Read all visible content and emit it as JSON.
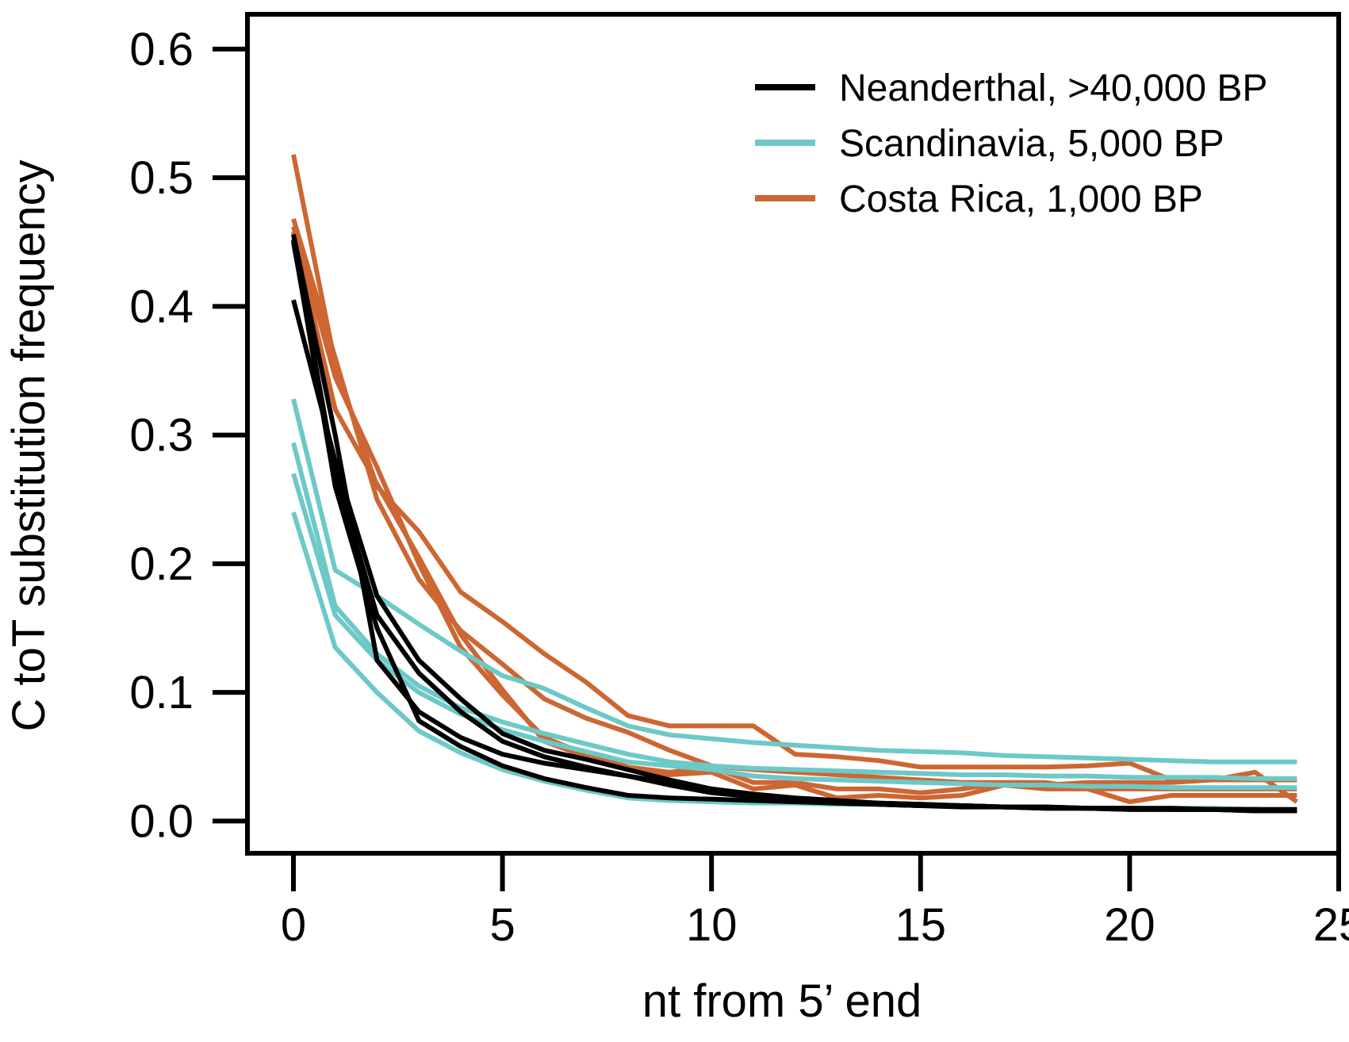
{
  "chart_data": {
    "type": "line",
    "title": "",
    "xlabel": "nt from 5’ end",
    "ylabel": "C toT substitution frequency",
    "xlim": [
      -1.1,
      25
    ],
    "ylim": [
      -0.025,
      0.627
    ],
    "xticks": [
      "0",
      "5",
      "10",
      "15",
      "20",
      "25"
    ],
    "xtick_values": [
      0,
      5,
      10,
      15,
      20,
      25
    ],
    "yticks": [
      "0.0",
      "0.1",
      "0.2",
      "0.3",
      "0.4",
      "0.5",
      "0.6"
    ],
    "ytick_values": [
      0.0,
      0.1,
      0.2,
      0.3,
      0.4,
      0.5,
      0.6
    ],
    "grid": false,
    "legend_position": "top-right",
    "legend": [
      {
        "label": "Neanderthal, >40,000 BP",
        "color": "#000000"
      },
      {
        "label": "Scandinavia, 5,000 BP",
        "color": "#6cc9c7"
      },
      {
        "label": "Costa Rica, 1,000 BP",
        "color": "#cd6632"
      }
    ],
    "groups": [
      {
        "color": "#cd6632",
        "lines": [
          {
            "x": [
              0,
              1,
              2,
              3,
              4,
              5,
              6,
              7,
              8,
              9,
              10,
              11,
              12,
              13,
              14,
              15,
              16,
              17,
              18,
              19,
              20,
              21,
              22,
              23,
              24
            ],
            "y": [
              0.518,
              0.355,
              0.26,
              0.225,
              0.178,
              0.155,
              0.13,
              0.108,
              0.082,
              0.074,
              0.074,
              0.074,
              0.052,
              0.05,
              0.047,
              0.042,
              0.042,
              0.042,
              0.042,
              0.043,
              0.045,
              0.032,
              0.032,
              0.032,
              0.032
            ]
          },
          {
            "x": [
              0,
              1,
              2,
              3,
              4,
              5,
              6,
              7,
              8,
              9,
              10,
              11,
              12,
              13,
              14,
              15,
              16,
              17,
              18,
              19,
              20,
              21,
              22,
              23,
              24
            ],
            "y": [
              0.468,
              0.36,
              0.25,
              0.188,
              0.148,
              0.122,
              0.095,
              0.08,
              0.069,
              0.055,
              0.043,
              0.04,
              0.038,
              0.036,
              0.034,
              0.032,
              0.03,
              0.03,
              0.03,
              0.025,
              0.025,
              0.025,
              0.025,
              0.025,
              0.025
            ]
          },
          {
            "x": [
              0,
              1,
              2,
              3,
              4,
              5,
              6,
              7,
              8,
              9,
              10,
              11,
              12,
              13,
              14,
              15,
              16,
              17,
              18,
              19,
              20,
              21,
              22,
              23,
              24
            ],
            "y": [
              0.458,
              0.32,
              0.262,
              0.205,
              0.145,
              0.102,
              0.062,
              0.05,
              0.04,
              0.036,
              0.038,
              0.025,
              0.028,
              0.018,
              0.02,
              0.018,
              0.02,
              0.028,
              0.025,
              0.025,
              0.015,
              0.02,
              0.02,
              0.02,
              0.02
            ]
          },
          {
            "x": [
              0,
              1,
              2,
              3,
              4,
              5,
              6,
              7,
              8,
              9,
              10,
              11,
              12,
              13,
              14,
              15,
              16,
              17,
              18,
              19,
              20,
              21,
              22,
              23,
              24
            ],
            "y": [
              0.462,
              0.345,
              0.275,
              0.2,
              0.135,
              0.098,
              0.065,
              0.052,
              0.042,
              0.038,
              0.042,
              0.03,
              0.03,
              0.025,
              0.025,
              0.022,
              0.025,
              0.03,
              0.028,
              0.03,
              0.03,
              0.03,
              0.032,
              0.038,
              0.015
            ]
          }
        ]
      },
      {
        "color": "#6cc9c7",
        "lines": [
          {
            "x": [
              0,
              1,
              2,
              3,
              4,
              5,
              6,
              7,
              8,
              9,
              10,
              11,
              12,
              13,
              14,
              15,
              16,
              17,
              18,
              19,
              20,
              21,
              22,
              23,
              24
            ],
            "y": [
              0.328,
              0.195,
              0.175,
              0.153,
              0.132,
              0.113,
              0.103,
              0.088,
              0.074,
              0.067,
              0.064,
              0.061,
              0.059,
              0.057,
              0.055,
              0.054,
              0.053,
              0.051,
              0.05,
              0.049,
              0.048,
              0.047,
              0.046,
              0.046,
              0.046
            ]
          },
          {
            "x": [
              0,
              1,
              2,
              3,
              4,
              5,
              6,
              7,
              8,
              9,
              10,
              11,
              12,
              13,
              14,
              15,
              16,
              17,
              18,
              19,
              20,
              21,
              22,
              23,
              24
            ],
            "y": [
              0.294,
              0.167,
              0.13,
              0.105,
              0.088,
              0.077,
              0.068,
              0.06,
              0.052,
              0.046,
              0.043,
              0.041,
              0.04,
              0.039,
              0.038,
              0.037,
              0.036,
              0.036,
              0.035,
              0.035,
              0.034,
              0.034,
              0.034,
              0.033,
              0.033
            ]
          },
          {
            "x": [
              0,
              1,
              2,
              3,
              4,
              5,
              6,
              7,
              8,
              9,
              10,
              11,
              12,
              13,
              14,
              15,
              16,
              17,
              18,
              19,
              20,
              21,
              22,
              23,
              24
            ],
            "y": [
              0.27,
              0.16,
              0.125,
              0.1,
              0.083,
              0.071,
              0.062,
              0.054,
              0.046,
              0.043,
              0.04,
              0.035,
              0.033,
              0.032,
              0.031,
              0.03,
              0.029,
              0.028,
              0.028,
              0.027,
              0.027,
              0.026,
              0.026,
              0.026,
              0.026
            ]
          },
          {
            "x": [
              0,
              1,
              2,
              3,
              4,
              5,
              6,
              7,
              8,
              9,
              10,
              11,
              12,
              13,
              14,
              15,
              16,
              17,
              18,
              19,
              20,
              21,
              22,
              23,
              24
            ],
            "y": [
              0.24,
              0.135,
              0.1,
              0.07,
              0.053,
              0.04,
              0.031,
              0.024,
              0.018,
              0.016,
              0.015,
              0.014,
              0.014,
              0.013,
              0.013,
              0.012,
              0.012,
              0.011,
              0.011,
              0.01,
              0.01,
              0.01,
              0.01,
              0.009,
              0.009
            ]
          }
        ]
      },
      {
        "color": "#000000",
        "lines": [
          {
            "x": [
              0,
              1,
              2,
              3,
              4,
              5,
              6,
              7,
              8,
              9,
              10,
              11,
              12,
              13,
              14,
              15,
              16,
              17,
              18,
              19,
              20,
              21,
              22,
              23,
              24
            ],
            "y": [
              0.456,
              0.3,
              0.125,
              0.085,
              0.065,
              0.052,
              0.045,
              0.04,
              0.035,
              0.03,
              0.025,
              0.021,
              0.018,
              0.016,
              0.014,
              0.013,
              0.012,
              0.011,
              0.011,
              0.01,
              0.01,
              0.009,
              0.009,
              0.009,
              0.008
            ]
          },
          {
            "x": [
              0,
              1,
              2,
              3,
              4,
              5,
              6,
              7,
              8,
              9,
              10,
              11,
              12,
              13,
              14,
              15,
              16,
              17,
              18,
              19,
              20,
              21,
              22,
              23,
              24
            ],
            "y": [
              0.405,
              0.28,
              0.175,
              0.125,
              0.095,
              0.068,
              0.055,
              0.048,
              0.04,
              0.032,
              0.025,
              0.02,
              0.017,
              0.015,
              0.014,
              0.013,
              0.012,
              0.011,
              0.01,
              0.01,
              0.009,
              0.009,
              0.009,
              0.008,
              0.008
            ]
          },
          {
            "x": [
              0,
              1,
              2,
              3,
              4,
              5,
              6,
              7,
              8,
              9,
              10,
              11,
              12,
              13,
              14,
              15,
              16,
              17,
              18,
              19,
              20,
              21,
              22,
              23,
              24
            ],
            "y": [
              0.45,
              0.27,
              0.16,
              0.115,
              0.085,
              0.062,
              0.05,
              0.042,
              0.035,
              0.028,
              0.022,
              0.019,
              0.016,
              0.014,
              0.013,
              0.012,
              0.011,
              0.011,
              0.01,
              0.01,
              0.009,
              0.009,
              0.009,
              0.008,
              0.008
            ]
          },
          {
            "x": [
              0,
              1,
              2,
              3,
              4,
              5,
              6,
              7,
              8,
              9,
              10,
              11,
              12,
              13,
              14,
              15,
              16,
              17,
              18,
              19,
              20,
              21,
              22,
              23,
              24
            ],
            "y": [
              0.452,
              0.26,
              0.15,
              0.078,
              0.058,
              0.043,
              0.033,
              0.026,
              0.02,
              0.018,
              0.017,
              0.016,
              0.015,
              0.014,
              0.013,
              0.012,
              0.012,
              0.011,
              0.011,
              0.01,
              0.01,
              0.01,
              0.009,
              0.009,
              0.009
            ]
          }
        ]
      }
    ]
  }
}
